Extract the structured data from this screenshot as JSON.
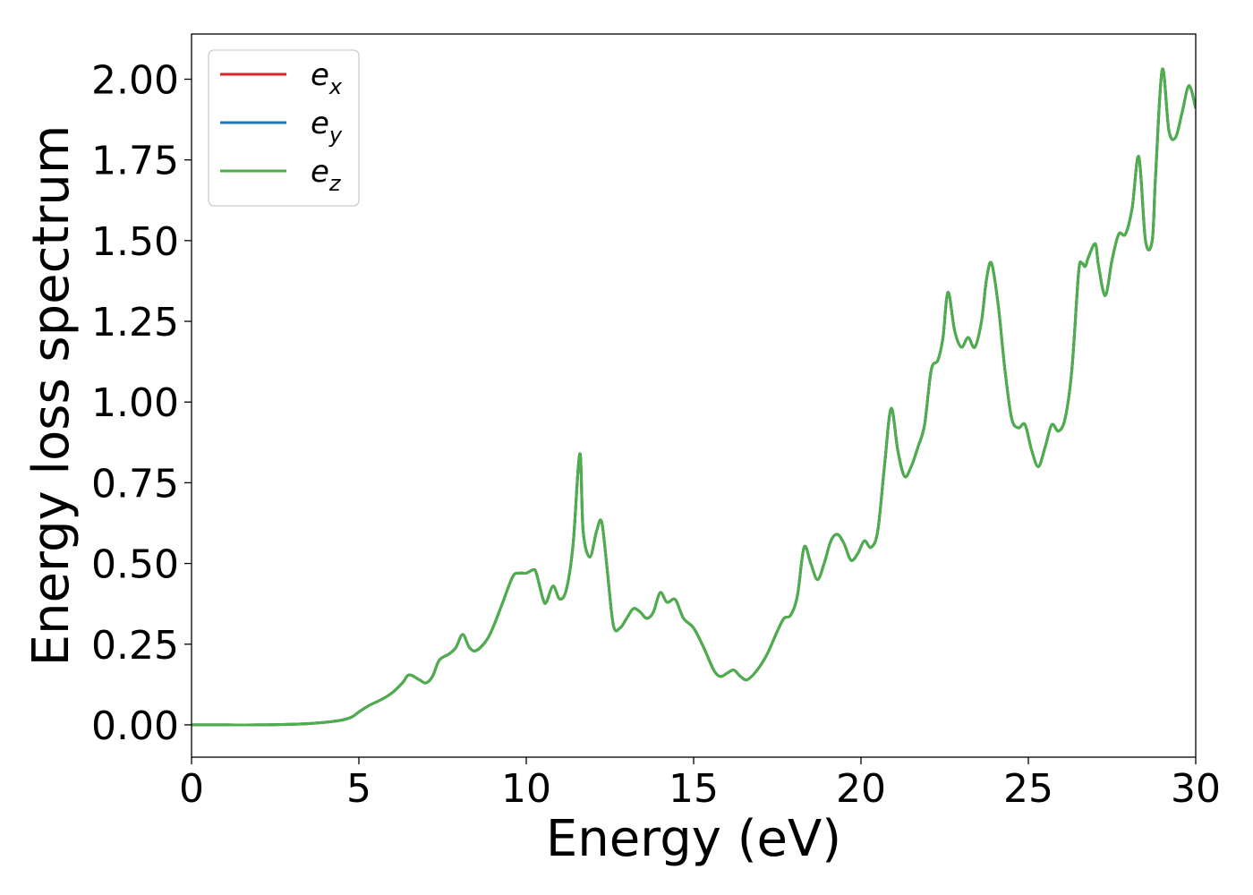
{
  "chart_data": {
    "type": "line",
    "title": "",
    "xlabel": "Energy (eV)",
    "ylabel": "Energy loss spectrum",
    "xlim": [
      0,
      30
    ],
    "ylim": [
      -0.1,
      2.14
    ],
    "xticks": [
      0,
      5,
      10,
      15,
      20,
      25,
      30
    ],
    "xtick_labels": [
      "0",
      "5",
      "10",
      "15",
      "20",
      "25",
      "30"
    ],
    "yticks": [
      0,
      0.25,
      0.5,
      0.75,
      1.0,
      1.25,
      1.5,
      1.75,
      2.0
    ],
    "ytick_labels": [
      "0.00",
      "0.25",
      "0.50",
      "0.75",
      "1.00",
      "1.25",
      "1.50",
      "1.75",
      "2.00"
    ],
    "grid": false,
    "legend_position": "top-left",
    "legend": {
      "entries": [
        {
          "base": "e",
          "sub": "x",
          "color": "#d62728"
        },
        {
          "base": "e",
          "sub": "y",
          "color": "#1f77b4"
        },
        {
          "base": "e",
          "sub": "z",
          "color": "#4daf4a"
        }
      ]
    },
    "x": [
      0,
      1,
      2,
      3,
      3.5,
      4,
      4.5,
      4.8,
      5,
      5.3,
      5.7,
      6.0,
      6.3,
      6.5,
      6.8,
      7.0,
      7.2,
      7.4,
      7.7,
      7.9,
      8.1,
      8.3,
      8.5,
      8.8,
      9.0,
      9.3,
      9.6,
      9.8,
      10.0,
      10.2,
      10.3,
      10.5,
      10.6,
      10.8,
      11.0,
      11.2,
      11.4,
      11.6,
      11.7,
      11.9,
      12.1,
      12.25,
      12.4,
      12.6,
      12.8,
      13.0,
      13.2,
      13.4,
      13.6,
      13.8,
      14.0,
      14.2,
      14.4,
      14.5,
      14.7,
      15.0,
      15.3,
      15.6,
      15.8,
      16.0,
      16.2,
      16.4,
      16.6,
      16.9,
      17.2,
      17.5,
      17.7,
      17.9,
      18.1,
      18.3,
      18.5,
      18.7,
      18.9,
      19.1,
      19.3,
      19.5,
      19.7,
      19.9,
      20.1,
      20.3,
      20.5,
      20.7,
      20.9,
      21.1,
      21.3,
      21.5,
      21.7,
      21.9,
      22.1,
      22.3,
      22.45,
      22.6,
      22.8,
      23.0,
      23.2,
      23.4,
      23.6,
      23.75,
      23.9,
      24.1,
      24.3,
      24.5,
      24.7,
      24.9,
      25.1,
      25.3,
      25.5,
      25.7,
      25.9,
      26.1,
      26.3,
      26.5,
      26.6,
      26.7,
      26.8,
      27.0,
      27.1,
      27.3,
      27.5,
      27.7,
      27.9,
      28.1,
      28.3,
      28.5,
      28.7,
      28.8,
      29.0,
      29.2,
      29.4,
      29.6,
      29.8,
      30.0
    ],
    "series": [
      {
        "name": "e_x",
        "color": "#d62728",
        "values": [
          0.0,
          0.0,
          0.0,
          0.002,
          0.004,
          0.008,
          0.015,
          0.025,
          0.04,
          0.06,
          0.08,
          0.1,
          0.13,
          0.155,
          0.14,
          0.13,
          0.15,
          0.2,
          0.22,
          0.24,
          0.28,
          0.24,
          0.23,
          0.26,
          0.3,
          0.38,
          0.46,
          0.47,
          0.47,
          0.48,
          0.47,
          0.39,
          0.38,
          0.43,
          0.39,
          0.42,
          0.56,
          0.84,
          0.6,
          0.52,
          0.6,
          0.63,
          0.5,
          0.31,
          0.3,
          0.33,
          0.36,
          0.35,
          0.33,
          0.35,
          0.41,
          0.38,
          0.39,
          0.38,
          0.33,
          0.3,
          0.24,
          0.17,
          0.15,
          0.16,
          0.17,
          0.15,
          0.14,
          0.17,
          0.22,
          0.29,
          0.33,
          0.34,
          0.4,
          0.55,
          0.5,
          0.45,
          0.5,
          0.57,
          0.59,
          0.56,
          0.51,
          0.53,
          0.57,
          0.55,
          0.6,
          0.8,
          0.98,
          0.85,
          0.77,
          0.8,
          0.86,
          0.93,
          1.1,
          1.13,
          1.2,
          1.34,
          1.22,
          1.17,
          1.2,
          1.17,
          1.25,
          1.38,
          1.43,
          1.3,
          1.1,
          0.95,
          0.92,
          0.93,
          0.85,
          0.8,
          0.86,
          0.93,
          0.91,
          0.95,
          1.1,
          1.4,
          1.43,
          1.42,
          1.45,
          1.49,
          1.42,
          1.33,
          1.44,
          1.52,
          1.52,
          1.6,
          1.76,
          1.5,
          1.5,
          1.7,
          2.03,
          1.84,
          1.82,
          1.9,
          1.98,
          1.91
        ]
      },
      {
        "name": "e_y",
        "color": "#1f77b4",
        "values": [
          0.0,
          0.0,
          0.0,
          0.002,
          0.004,
          0.008,
          0.015,
          0.025,
          0.04,
          0.06,
          0.08,
          0.1,
          0.13,
          0.155,
          0.14,
          0.13,
          0.15,
          0.2,
          0.22,
          0.24,
          0.28,
          0.24,
          0.23,
          0.26,
          0.3,
          0.38,
          0.46,
          0.47,
          0.47,
          0.48,
          0.47,
          0.39,
          0.38,
          0.43,
          0.39,
          0.42,
          0.56,
          0.84,
          0.6,
          0.52,
          0.6,
          0.63,
          0.5,
          0.31,
          0.3,
          0.33,
          0.36,
          0.35,
          0.33,
          0.35,
          0.41,
          0.38,
          0.39,
          0.38,
          0.33,
          0.3,
          0.24,
          0.17,
          0.15,
          0.16,
          0.17,
          0.15,
          0.14,
          0.17,
          0.22,
          0.29,
          0.33,
          0.34,
          0.4,
          0.55,
          0.5,
          0.45,
          0.5,
          0.57,
          0.59,
          0.56,
          0.51,
          0.53,
          0.57,
          0.55,
          0.6,
          0.8,
          0.98,
          0.85,
          0.77,
          0.8,
          0.86,
          0.93,
          1.1,
          1.13,
          1.2,
          1.34,
          1.22,
          1.17,
          1.2,
          1.17,
          1.25,
          1.38,
          1.43,
          1.3,
          1.1,
          0.95,
          0.92,
          0.93,
          0.85,
          0.8,
          0.86,
          0.93,
          0.91,
          0.95,
          1.1,
          1.4,
          1.43,
          1.42,
          1.45,
          1.49,
          1.42,
          1.33,
          1.44,
          1.52,
          1.52,
          1.6,
          1.76,
          1.5,
          1.5,
          1.7,
          2.03,
          1.84,
          1.82,
          1.9,
          1.98,
          1.91
        ]
      },
      {
        "name": "e_z",
        "color": "#4daf4a",
        "values": [
          0.0,
          0.0,
          0.0,
          0.002,
          0.004,
          0.008,
          0.015,
          0.025,
          0.04,
          0.06,
          0.08,
          0.1,
          0.13,
          0.155,
          0.14,
          0.13,
          0.15,
          0.2,
          0.22,
          0.24,
          0.28,
          0.24,
          0.23,
          0.26,
          0.3,
          0.38,
          0.46,
          0.47,
          0.47,
          0.48,
          0.47,
          0.39,
          0.38,
          0.43,
          0.39,
          0.42,
          0.56,
          0.84,
          0.6,
          0.52,
          0.6,
          0.63,
          0.5,
          0.31,
          0.3,
          0.33,
          0.36,
          0.35,
          0.33,
          0.35,
          0.41,
          0.38,
          0.39,
          0.38,
          0.33,
          0.3,
          0.24,
          0.17,
          0.15,
          0.16,
          0.17,
          0.15,
          0.14,
          0.17,
          0.22,
          0.29,
          0.33,
          0.34,
          0.4,
          0.55,
          0.5,
          0.45,
          0.5,
          0.57,
          0.59,
          0.56,
          0.51,
          0.53,
          0.57,
          0.55,
          0.6,
          0.8,
          0.98,
          0.85,
          0.77,
          0.8,
          0.86,
          0.93,
          1.1,
          1.13,
          1.2,
          1.34,
          1.22,
          1.17,
          1.2,
          1.17,
          1.25,
          1.38,
          1.43,
          1.3,
          1.1,
          0.95,
          0.92,
          0.93,
          0.85,
          0.8,
          0.86,
          0.93,
          0.91,
          0.95,
          1.1,
          1.4,
          1.43,
          1.42,
          1.45,
          1.49,
          1.42,
          1.33,
          1.44,
          1.52,
          1.52,
          1.6,
          1.76,
          1.5,
          1.5,
          1.7,
          2.03,
          1.84,
          1.82,
          1.9,
          1.98,
          1.91
        ]
      }
    ]
  }
}
